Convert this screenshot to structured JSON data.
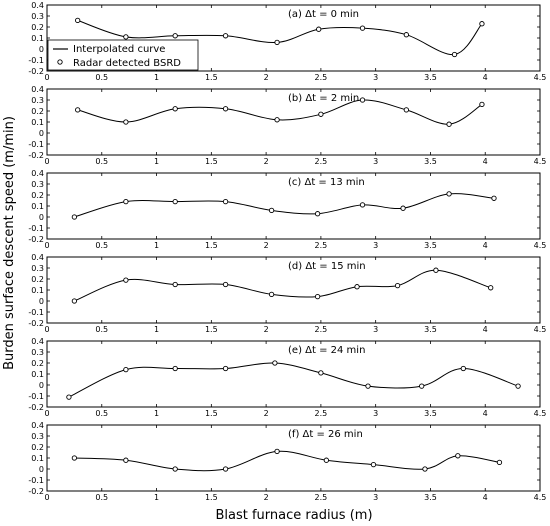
{
  "figure": {
    "xlabel": "Blast furnace radius (m)",
    "ylabel": "Burden surface descent speed (m/min)"
  },
  "legend": {
    "curve_label": "Interpolated curve",
    "points_label": "Radar detected BSRD",
    "placement": "top-left of first panel"
  },
  "chart_data": [
    {
      "type": "line",
      "title": "(a) Δt = 0 min",
      "xlim": [
        0,
        4.5
      ],
      "ylim": [
        -0.2,
        0.4
      ],
      "x_ticks": [
        "0",
        "0.5",
        "1",
        "1.5",
        "2",
        "2.5",
        "3",
        "3.5",
        "4",
        "4.5"
      ],
      "y_ticks": [
        "-0.2",
        "-0.1",
        "0",
        "0.1",
        "0.2",
        "0.3",
        "0.4"
      ],
      "series": [
        {
          "x": [
            0.28,
            0.72,
            1.17,
            1.63,
            2.1,
            2.48,
            2.88,
            3.28,
            3.72,
            3.97
          ],
          "y": [
            0.26,
            0.11,
            0.12,
            0.12,
            0.06,
            0.18,
            0.19,
            0.13,
            -0.05,
            0.23
          ]
        }
      ]
    },
    {
      "type": "line",
      "title": "(b) Δt = 2 min",
      "xlim": [
        0,
        4.5
      ],
      "ylim": [
        -0.2,
        0.4
      ],
      "x_ticks": [
        "0",
        "0.5",
        "1",
        "1.5",
        "2",
        "2.5",
        "3",
        "3.5",
        "4",
        "4.5"
      ],
      "y_ticks": [
        "-0.2",
        "-0.1",
        "0",
        "0.1",
        "0.2",
        "0.3",
        "0.4"
      ],
      "series": [
        {
          "x": [
            0.28,
            0.72,
            1.17,
            1.63,
            2.1,
            2.5,
            2.88,
            3.28,
            3.67,
            3.97
          ],
          "y": [
            0.21,
            0.1,
            0.22,
            0.22,
            0.12,
            0.17,
            0.3,
            0.21,
            0.08,
            0.26
          ]
        }
      ]
    },
    {
      "type": "line",
      "title": "(c) Δt = 13 min",
      "xlim": [
        0,
        4.5
      ],
      "ylim": [
        -0.2,
        0.4
      ],
      "x_ticks": [
        "0",
        "0.5",
        "1",
        "1.5",
        "2",
        "2.5",
        "3",
        "3.5",
        "4",
        "4.5"
      ],
      "y_ticks": [
        "-0.2",
        "-0.1",
        "0",
        "0.1",
        "0.2",
        "0.3",
        "0.4"
      ],
      "series": [
        {
          "x": [
            0.25,
            0.72,
            1.17,
            1.63,
            2.05,
            2.47,
            2.88,
            3.25,
            3.67,
            4.08
          ],
          "y": [
            0.0,
            0.14,
            0.14,
            0.14,
            0.06,
            0.03,
            0.11,
            0.08,
            0.21,
            0.17
          ]
        }
      ]
    },
    {
      "type": "line",
      "title": "(d) Δt = 15 min",
      "xlim": [
        0,
        4.5
      ],
      "ylim": [
        -0.2,
        0.4
      ],
      "x_ticks": [
        "0",
        "0.5",
        "1",
        "1.5",
        "2",
        "2.5",
        "3",
        "3.5",
        "4",
        "4.5"
      ],
      "y_ticks": [
        "-0.2",
        "-0.1",
        "0",
        "0.1",
        "0.2",
        "0.3",
        "0.4"
      ],
      "series": [
        {
          "x": [
            0.25,
            0.72,
            1.17,
            1.63,
            2.05,
            2.47,
            2.83,
            3.2,
            3.55,
            4.05
          ],
          "y": [
            0.0,
            0.19,
            0.15,
            0.15,
            0.06,
            0.04,
            0.13,
            0.14,
            0.28,
            0.12
          ]
        }
      ]
    },
    {
      "type": "line",
      "title": "(e) Δt = 24 min",
      "xlim": [
        0,
        4.5
      ],
      "ylim": [
        -0.2,
        0.4
      ],
      "x_ticks": [
        "0",
        "0.5",
        "1",
        "1.5",
        "2",
        "2.5",
        "3",
        "3.5",
        "4",
        "4.5"
      ],
      "y_ticks": [
        "-0.2",
        "-0.1",
        "0",
        "0.1",
        "0.2",
        "0.3",
        "0.4"
      ],
      "series": [
        {
          "x": [
            0.2,
            0.72,
            1.17,
            1.63,
            2.08,
            2.5,
            2.93,
            3.42,
            3.8,
            4.3
          ],
          "y": [
            -0.11,
            0.14,
            0.15,
            0.15,
            0.2,
            0.11,
            -0.01,
            -0.01,
            0.15,
            -0.01
          ]
        }
      ]
    },
    {
      "type": "line",
      "title": "(f) Δt = 26 min",
      "xlim": [
        0,
        4.5
      ],
      "ylim": [
        -0.2,
        0.4
      ],
      "x_ticks": [
        "0",
        "0.5",
        "1",
        "1.5",
        "2",
        "2.5",
        "3",
        "3.5",
        "4",
        "4.5"
      ],
      "y_ticks": [
        "-0.2",
        "-0.1",
        "0",
        "0.1",
        "0.2",
        "0.3",
        "0.4"
      ],
      "series": [
        {
          "x": [
            0.25,
            0.72,
            1.17,
            1.63,
            2.1,
            2.55,
            2.98,
            3.45,
            3.75,
            4.13
          ],
          "y": [
            0.1,
            0.08,
            0.0,
            0.0,
            0.16,
            0.08,
            0.04,
            0.0,
            0.12,
            0.06
          ]
        }
      ]
    }
  ]
}
